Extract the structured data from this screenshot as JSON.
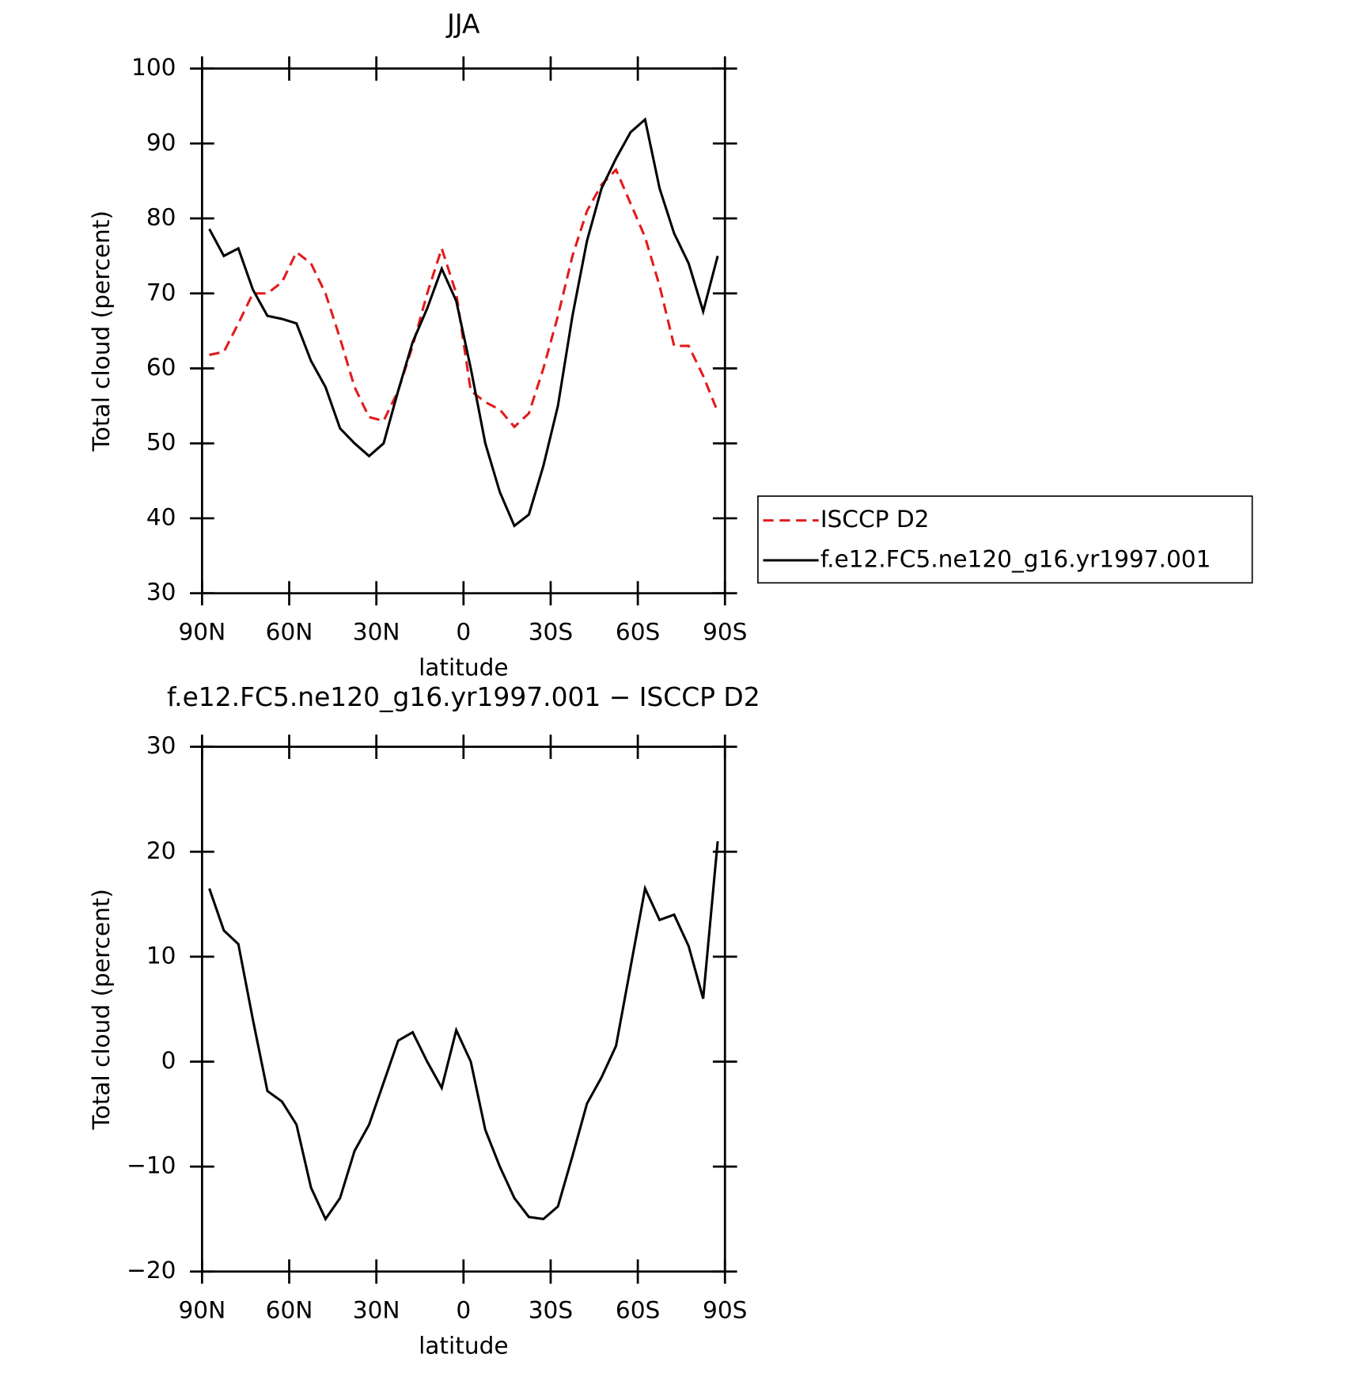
{
  "chart_data": [
    {
      "type": "line",
      "title": "JJA",
      "xlabel": "latitude",
      "ylabel": "Total cloud (percent)",
      "x": [
        87.5,
        82.5,
        77.5,
        72.5,
        67.5,
        62.5,
        57.5,
        52.5,
        47.5,
        42.5,
        37.5,
        32.5,
        27.5,
        22.5,
        17.5,
        12.5,
        7.5,
        2.5,
        -2.5,
        -7.5,
        -12.5,
        -17.5,
        -22.5,
        -27.5,
        -32.5,
        -37.5,
        -42.5,
        -47.5,
        -52.5,
        -57.5,
        -62.5,
        -67.5,
        -72.5,
        -77.5,
        -82.5,
        -87.5
      ],
      "series": [
        {
          "name": "ISCCP D2",
          "color": "#e41a1c",
          "dashed": true,
          "values": [
            61.8,
            62.2,
            66,
            70,
            70,
            71.5,
            75.5,
            74,
            70,
            64,
            57.5,
            53.5,
            53,
            57,
            63,
            70,
            76,
            70,
            57,
            55.5,
            54.5,
            52.2,
            54,
            60,
            67,
            75,
            81,
            84.5,
            86.5,
            82,
            77.5,
            71,
            63,
            63,
            59,
            54.2
          ]
        },
        {
          "name": "f.e12.FC5.ne120_g16.yr1997.001",
          "color": "#000000",
          "dashed": false,
          "values": [
            78.6,
            75,
            76,
            70.5,
            67,
            66.6,
            66,
            61,
            57.5,
            52,
            50,
            48.3,
            50,
            57,
            63.5,
            68,
            73.3,
            69,
            60,
            50,
            43.5,
            39,
            40.5,
            47,
            55,
            67,
            77,
            84,
            88,
            91.5,
            93.2,
            84,
            78,
            74,
            67.6,
            75
          ]
        }
      ],
      "xlim": [
        90,
        -90
      ],
      "xticks": [
        {
          "value": 90,
          "label": "90N"
        },
        {
          "value": 60,
          "label": "60N"
        },
        {
          "value": 30,
          "label": "30N"
        },
        0,
        {
          "value": -30,
          "label": "30S"
        },
        {
          "value": -60,
          "label": "60S"
        },
        {
          "value": -90,
          "label": "90S"
        }
      ],
      "ylim": [
        30,
        100
      ],
      "yticks": [
        30,
        40,
        50,
        60,
        70,
        80,
        90,
        100
      ],
      "legend": "right"
    },
    {
      "type": "line",
      "title": "f.e12.FC5.ne120_g16.yr1997.001 − ISCCP D2",
      "xlabel": "latitude",
      "ylabel": "Total cloud (percent)",
      "x": [
        87.5,
        82.5,
        77.5,
        72.5,
        67.5,
        62.5,
        57.5,
        52.5,
        47.5,
        42.5,
        37.5,
        32.5,
        27.5,
        22.5,
        17.5,
        12.5,
        7.5,
        2.5,
        -2.5,
        -7.5,
        -12.5,
        -17.5,
        -22.5,
        -27.5,
        -32.5,
        -37.5,
        -42.5,
        -47.5,
        -52.5,
        -57.5,
        -62.5,
        -67.5,
        -72.5,
        -77.5,
        -82.5,
        -87.5
      ],
      "series": [
        {
          "color": "#000000",
          "dashed": false,
          "values": [
            16.5,
            12.5,
            11.2,
            4,
            -2.8,
            -3.8,
            -6,
            -12,
            -15,
            -13,
            -8.5,
            -6,
            -2,
            2,
            2.8,
            0,
            -2.5,
            3,
            0,
            -6.5,
            -10,
            -13,
            -14.8,
            -15,
            -13.8,
            -9,
            -4,
            -1.5,
            1.5,
            9,
            16.5,
            13.5,
            14,
            11,
            6,
            21
          ]
        }
      ],
      "xlim": [
        90,
        -90
      ],
      "xticks": [
        {
          "value": 90,
          "label": "90N"
        },
        {
          "value": 60,
          "label": "60N"
        },
        {
          "value": 30,
          "label": "30N"
        },
        0,
        {
          "value": -30,
          "label": "30S"
        },
        {
          "value": -60,
          "label": "60S"
        },
        {
          "value": -90,
          "label": "90S"
        }
      ],
      "ylim": [
        -20,
        30
      ],
      "yticks": [
        {
          "value": -20,
          "label": "−20"
        },
        {
          "value": -10,
          "label": "−10"
        },
        0,
        10,
        20,
        30
      ]
    }
  ]
}
